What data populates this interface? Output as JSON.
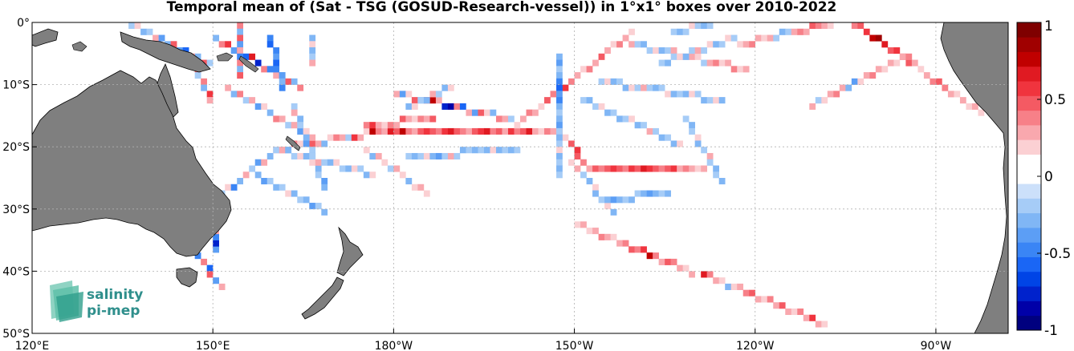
{
  "title": "Temporal mean of (Sat - TSG (GOSUD-Research-vessel)) in 1°x1° boxes over 2010-2022",
  "map": {
    "lon_range": [
      120,
      282
    ],
    "lat_range": [
      -50,
      0
    ],
    "lon_ticks": [
      {
        "lon": 120,
        "label": "120°E"
      },
      {
        "lon": 150,
        "label": "150°E"
      },
      {
        "lon": 180,
        "label": "180°W"
      },
      {
        "lon": 210,
        "label": "150°W"
      },
      {
        "lon": 240,
        "label": "120°W"
      },
      {
        "lon": 270,
        "label": "90°W"
      }
    ],
    "lat_ticks": [
      {
        "lat": 0,
        "label": "0°"
      },
      {
        "lat": -10,
        "label": "10°S"
      },
      {
        "lat": -20,
        "label": "20°S"
      },
      {
        "lat": -30,
        "label": "30°S"
      },
      {
        "lat": -40,
        "label": "40°S"
      },
      {
        "lat": -50,
        "label": "50°S"
      }
    ],
    "grid": true,
    "land_color": "#7f7f7f"
  },
  "colorbar": {
    "min": -1,
    "max": 1,
    "ticks": [
      {
        "value": 1,
        "label": "1"
      },
      {
        "value": 0.5,
        "label": "0.5"
      },
      {
        "value": 0,
        "label": "0"
      },
      {
        "value": -0.5,
        "label": "-0.5"
      },
      {
        "value": -1,
        "label": "-1"
      }
    ],
    "colors": [
      "#00007f",
      "#0000a8",
      "#0022cc",
      "#0044e6",
      "#1a66f5",
      "#3a85f5",
      "#5c9ef5",
      "#80b6f5",
      "#a6ccf7",
      "#cce0fa",
      "#ffffff",
      "#ffffff",
      "#fbd0d3",
      "#f9a8ae",
      "#f78088",
      "#f45a63",
      "#f0343e",
      "#e01a22",
      "#c00000",
      "#a00000",
      "#7f0000"
    ]
  },
  "logo": {
    "line1": "salinity",
    "line2": "pi-mep"
  },
  "chart_data": {
    "type": "heatmap",
    "title": "Temporal mean of (Sat - TSG (GOSUD-Research-vessel)) in 1°x1° boxes over 2010-2022",
    "value_range": [
      -1,
      1
    ],
    "tracks": [
      {
        "from": [
          150.5,
          -36.5
        ],
        "to": [
          150.5,
          -27.5
        ],
        "values": [
          -0.35,
          -0.8,
          -0.5,
          0.3,
          -0.4,
          0.4,
          -0.2,
          -0.5,
          -0.3,
          0.2
        ]
      },
      {
        "from": [
          150.5,
          -28.5
        ],
        "to": [
          160.5,
          -20.5
        ],
        "values": [
          -0.4,
          -0.2,
          0.2,
          -0.5,
          -0.3,
          0.3,
          -0.2,
          -0.4,
          0.3,
          -0.3,
          0.2
        ]
      },
      {
        "from": [
          160.5,
          -20.5
        ],
        "to": [
          178.5,
          -17.5
        ],
        "values": [
          0.2,
          0.3,
          -0.3,
          0.4,
          0.2,
          -0.2,
          0.5,
          0.3,
          -0.3,
          0.2,
          0.4,
          0.3,
          -0.2,
          0.6,
          0.3,
          0.2,
          0.8,
          0.4,
          -0.3
        ]
      },
      {
        "from": [
          178.5,
          -17.5
        ],
        "to": [
          207.5,
          -17.5
        ],
        "values": [
          0.3,
          0.7,
          0.5,
          0.8,
          0.4,
          0.3,
          0.5,
          0.6,
          0.5,
          0.4,
          0.6,
          0.7,
          0.5,
          0.4,
          0.3,
          0.5,
          0.6,
          0.7,
          0.4,
          0.5,
          0.3,
          0.6,
          0.4,
          0.5,
          0.7,
          0.3,
          0.2,
          0.4,
          0.3,
          0.5
        ]
      },
      {
        "from": [
          180.5,
          -11.5
        ],
        "to": [
          199.5,
          -15.5
        ],
        "values": [
          0.3,
          -0.4,
          0.2,
          0.5,
          -0.3,
          0.6,
          0.8,
          0.3,
          -0.8,
          -0.9,
          0.4,
          -0.6,
          0.3,
          -0.4,
          0.5,
          0.2,
          -0.3,
          0.4,
          0.3,
          -0.2
        ]
      },
      {
        "from": [
          182.5,
          -21.5
        ],
        "to": [
          200.5,
          -20.5
        ],
        "values": [
          -0.2,
          -0.3,
          -0.2,
          0.2,
          -0.3,
          -0.4,
          -0.2,
          0.3,
          -0.2,
          -0.3,
          -0.2,
          -0.3,
          -0.2,
          -0.3,
          0.2,
          -0.3,
          -0.2,
          -0.3,
          -0.2
        ]
      },
      {
        "from": [
          207.5,
          -17.5
        ],
        "to": [
          212.5,
          -23.5
        ],
        "values": [
          0.3,
          0.2,
          0.5,
          0.6,
          0.5,
          0.4,
          0.3
        ]
      },
      {
        "from": [
          212.5,
          -23.5
        ],
        "to": [
          231.5,
          -23.5
        ],
        "values": [
          0.3,
          0.5,
          0.4,
          0.5,
          0.6,
          0.5,
          0.4,
          0.6,
          0.5,
          0.7,
          0.6,
          0.5,
          0.4,
          0.5,
          0.6,
          0.3,
          0.4,
          0.3,
          0.2,
          0.3
        ]
      },
      {
        "from": [
          209.5,
          -22.5
        ],
        "to": [
          216.5,
          -30.5
        ],
        "values": [
          0.2,
          0.3,
          -0.2,
          -0.3,
          0.2,
          -0.3,
          -0.2,
          0.2,
          -0.3
        ]
      },
      {
        "from": [
          215.5,
          -28.5
        ],
        "to": [
          225.5,
          -27.5
        ],
        "values": [
          -0.3,
          -0.4,
          -0.3,
          -0.2,
          -0.3,
          -0.2,
          -0.3,
          -0.4,
          -0.3,
          -0.2,
          -0.3
        ]
      },
      {
        "from": [
          210.5,
          -32.5
        ],
        "to": [
          251.5,
          -48.5
        ],
        "values": [
          0.2,
          0.3,
          0.2,
          0.3,
          0.4,
          0.3,
          0.2,
          0.3,
          0.4,
          0.5,
          0.4,
          0.6,
          0.8,
          0.4,
          0.3,
          0.5,
          0.4,
          0.3,
          0.2,
          0.3,
          0.7,
          0.4,
          0.3,
          0.2,
          -0.3,
          0.2,
          0.3,
          0.4,
          0.5,
          0.3,
          0.2,
          0.4,
          0.3,
          0.5,
          0.3,
          0.2,
          0.4,
          0.3,
          0.6,
          0.3,
          0.2
        ]
      },
      {
        "from": [
          200.5,
          -16.5
        ],
        "to": [
          219.5,
          -1.5
        ],
        "values": [
          0.2,
          0.3,
          0.4,
          0.3,
          0.2,
          0.5,
          0.4,
          0.3,
          0.6,
          0.4,
          0.3,
          0.2,
          0.4,
          0.3,
          0.5,
          0.3,
          0.2,
          0.4,
          0.3,
          0.2
        ]
      },
      {
        "from": [
          219.5,
          -3.5
        ],
        "to": [
          238.5,
          -7.5
        ],
        "values": [
          0.3,
          -0.2,
          -0.3,
          -0.2,
          0.2,
          -0.3,
          -0.2,
          0.3,
          -0.2,
          0.2,
          0.3,
          0.2,
          -0.2,
          0.3,
          0.4,
          0.2,
          0.3,
          0.4,
          0.2,
          0.3
        ]
      },
      {
        "from": [
          237.5,
          -3.5
        ],
        "to": [
          255.5,
          0.5
        ],
        "values": [
          0.2,
          0.3,
          0.4,
          0.3,
          0.2,
          0.3,
          -0.2,
          -0.3,
          -0.2,
          0.3,
          0.4,
          0.3,
          0.5,
          0.4,
          0.3,
          0.2,
          0.4,
          0.3,
          0.5
        ]
      },
      {
        "from": [
          255.5,
          0.5
        ],
        "to": [
          277.5,
          -14.5
        ],
        "values": [
          0.3,
          0.4,
          0.5,
          0.6,
          0.8,
          0.9,
          0.7,
          0.5,
          0.6,
          0.4,
          0.5,
          0.3,
          0.2,
          0.3,
          0.4,
          0.5,
          0.4,
          0.3,
          0.2,
          0.3,
          0.2,
          0.3,
          0.2
        ]
      },
      {
        "from": [
          249.5,
          -13.5
        ],
        "to": [
          265.5,
          -5.5
        ],
        "values": [
          0.3,
          -0.2,
          0.2,
          0.3,
          0.4,
          0.3,
          -0.3,
          -0.4,
          0.2,
          0.3,
          0.4,
          0.3,
          0.2,
          0.3,
          0.2,
          0.3,
          0.4
        ]
      },
      {
        "from": [
          211.5,
          -12.5
        ],
        "to": [
          227.5,
          -19.5
        ],
        "values": [
          -0.2,
          -0.3,
          -0.2,
          0.2,
          -0.3,
          -0.2,
          -0.3,
          -0.2,
          0.2,
          -0.3,
          -0.2,
          0.3,
          -0.2,
          -0.3,
          -0.2,
          -0.3,
          0.2
        ]
      },
      {
        "from": [
          214.5,
          -9.5
        ],
        "to": [
          234.5,
          -12.5
        ],
        "values": [
          -0.2,
          0.2,
          -0.3,
          -0.2,
          -0.3,
          0.2,
          -0.2,
          0.3,
          -0.2,
          -0.3,
          -0.2,
          0.2,
          -0.3,
          -0.2,
          -0.3,
          0.2,
          -0.2,
          -0.3,
          -0.2,
          0.2,
          -0.3
        ]
      },
      {
        "from": [
          228.5,
          -15.5
        ],
        "to": [
          234.5,
          -25.5
        ],
        "values": [
          -0.2,
          -0.3,
          -0.2,
          0.2,
          -0.3,
          -0.2,
          0.3,
          -0.2,
          -0.3,
          -0.2,
          -0.3
        ]
      },
      {
        "from": [
          207.5,
          -5.5
        ],
        "to": [
          207.5,
          -24.5
        ],
        "values": [
          -0.3,
          -0.4,
          -0.2,
          -0.3,
          -0.5,
          -0.6,
          -0.4,
          -0.5,
          -0.3,
          -0.2,
          -0.3,
          -0.4,
          -0.2,
          -0.3,
          -0.2,
          0.2,
          -0.3,
          -0.2,
          -0.3,
          -0.2
        ]
      },
      {
        "from": [
          136.5,
          -0.5
        ],
        "to": [
          149.5,
          -6.5
        ],
        "values": [
          -0.2,
          0.2,
          -0.3,
          -0.2,
          0.3,
          -0.4,
          -0.3,
          0.5,
          -0.4,
          -0.6,
          0.4,
          -0.3,
          0.5,
          -0.2
        ]
      },
      {
        "from": [
          146.5,
          -5.5
        ],
        "to": [
          149.5,
          -12.5
        ],
        "values": [
          0.3,
          -0.3,
          0.5,
          -0.2,
          0.4,
          -0.3,
          0.6,
          0.3
        ]
      },
      {
        "from": [
          150.5,
          -2.5
        ],
        "to": [
          164.5,
          -10.5
        ],
        "values": [
          -0.3,
          0.4,
          0.6,
          -0.4,
          0.5,
          -0.6,
          0.7,
          -0.8,
          0.4,
          -0.5,
          0.3,
          -0.4,
          0.5,
          -0.3,
          0.4
        ]
      },
      {
        "from": [
          152.5,
          -10.5
        ],
        "to": [
          166.5,
          -18.5
        ],
        "values": [
          0.3,
          -0.3,
          0.4,
          -0.2,
          0.3,
          -0.4,
          0.2,
          -0.3,
          0.4,
          0.3,
          -0.2,
          0.3,
          -0.4,
          0.2,
          0.3
        ]
      },
      {
        "from": [
          159.5,
          -2.5
        ],
        "to": [
          161.5,
          -10.5
        ],
        "values": [
          -0.5,
          -0.6,
          -0.5,
          -0.4,
          -0.6,
          -0.5,
          -0.4,
          -0.3,
          -0.5
        ]
      },
      {
        "from": [
          154.5,
          -0.5
        ],
        "to": [
          154.5,
          -8.5
        ],
        "values": [
          0.4,
          -0.3,
          0.5,
          -0.4,
          0.3,
          -0.5,
          0.4,
          -0.3,
          0.5
        ]
      },
      {
        "from": [
          163.5,
          -13.5
        ],
        "to": [
          168.5,
          -26.5
        ],
        "values": [
          -0.2,
          0.3,
          -0.3,
          -0.2,
          0.2,
          -0.3,
          -0.4,
          -0.2,
          -0.3,
          0.2,
          -0.3,
          -0.2,
          -0.4,
          -0.3
        ]
      },
      {
        "from": [
          157.5,
          -24.5
        ],
        "to": [
          168.5,
          -30.5
        ],
        "values": [
          -0.3,
          -0.4,
          -0.2,
          -0.3,
          -0.2,
          0.2,
          -0.3,
          -0.2,
          -0.3,
          -0.4,
          -0.2,
          -0.3
        ]
      },
      {
        "from": [
          147.5,
          -37.5
        ],
        "to": [
          151.5,
          -42.5
        ],
        "values": [
          -0.5,
          0.4,
          -0.6,
          0.5,
          -0.4,
          0.3
        ]
      },
      {
        "from": [
          166.5,
          -2.5
        ],
        "to": [
          166.5,
          -6.5
        ],
        "values": [
          -0.3,
          0.2,
          -0.3,
          -0.2,
          0.3
        ]
      },
      {
        "from": [
          160.5,
          -20.5
        ],
        "to": [
          176.5,
          -24.5
        ],
        "values": [
          -0.2,
          0.3,
          -0.3,
          -0.2,
          0.2,
          -0.3,
          -0.2,
          0.3,
          -0.2,
          -0.3,
          0.2,
          -0.2,
          -0.3,
          0.2,
          -0.2,
          -0.3,
          0.2
        ]
      },
      {
        "from": [
          175.5,
          -20.5
        ],
        "to": [
          185.5,
          -27.5
        ],
        "values": [
          0.2,
          -0.3,
          0.3,
          0.2,
          -0.2,
          0.3,
          0.2,
          -0.3,
          0.2,
          0.3,
          0.2
        ]
      },
      {
        "from": [
          182.5,
          -13.5
        ],
        "to": [
          189.5,
          -10.5
        ],
        "values": [
          -0.3,
          0.2,
          -0.2,
          -0.3,
          0.3,
          -0.2,
          -0.3,
          0.2
        ]
      },
      {
        "from": [
          226.5,
          -1.5
        ],
        "to": [
          232.5,
          -0.5
        ],
        "values": [
          -0.2,
          -0.3,
          -0.2,
          0.2,
          -0.2,
          -0.3,
          -0.2
        ]
      },
      {
        "from": [
          224.5,
          -6.5
        ],
        "to": [
          236.5,
          -2.5
        ],
        "values": [
          -0.2,
          -0.3,
          -0.2,
          0.2,
          -0.3,
          -0.2,
          0.3,
          -0.2,
          0.2,
          -0.3,
          -0.2,
          0.2,
          -0.2
        ]
      },
      {
        "from": [
          175.5,
          -16.5
        ],
        "to": [
          186.5,
          -15.5
        ],
        "values": [
          0.4,
          0.6,
          0.3,
          0.2,
          0.4,
          0.3,
          0.5,
          0.3,
          0.2,
          0.4,
          0.3,
          0.5
        ]
      }
    ]
  }
}
